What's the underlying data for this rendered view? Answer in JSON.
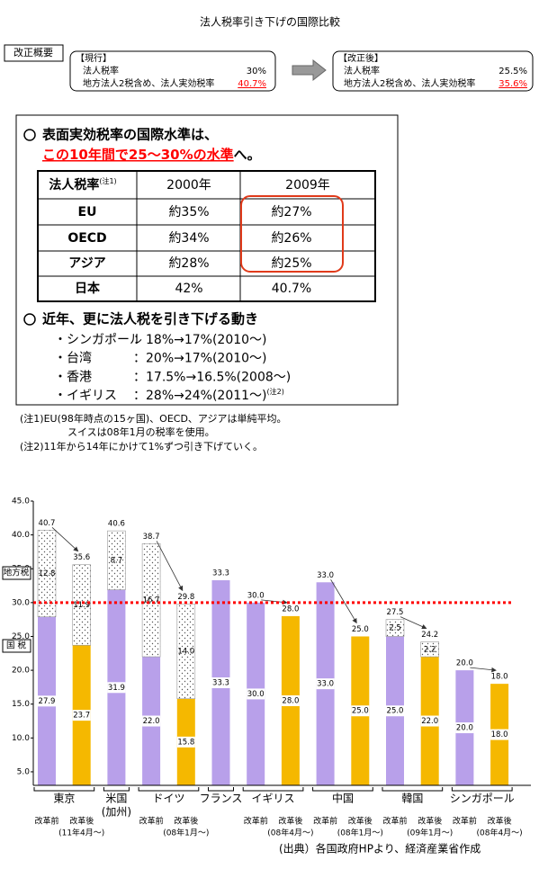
{
  "header": {
    "title": "法人税率引き下げの国際比較"
  },
  "summary": {
    "label": "改正概要",
    "current": {
      "heading": "【現行】",
      "rows": [
        {
          "label": "法人税率",
          "value": "30%"
        },
        {
          "label": "地方法人2税含め、法人実効税率",
          "value": "40.7%"
        }
      ]
    },
    "revised": {
      "heading": "【改正後】",
      "rows": [
        {
          "label": "法人税率",
          "value": "25.5%"
        },
        {
          "label": "地方法人2税含め、法人実効税率",
          "value": "35.6%"
        }
      ]
    }
  },
  "box": {
    "point1": {
      "lead": "表面実効税率の国際水準は、",
      "highlight": "この10年間で25～30%の水準",
      "tail": "へ。"
    },
    "table": {
      "header": [
        "法人税率",
        "2000年",
        "2009年"
      ],
      "header_note": "(注1)",
      "rows": [
        [
          "EU",
          "約35%",
          "約27%"
        ],
        [
          "OECD",
          "約34%",
          "約26%"
        ],
        [
          "アジア",
          "約28%",
          "約25%"
        ],
        [
          "日本",
          "42%",
          "40.7%"
        ]
      ]
    },
    "point2": "近年、更に法人税を引き下げる動き",
    "moves": [
      {
        "country": "・シンガポール",
        "change": "：18%→17%(2010～)"
      },
      {
        "country": "・台湾",
        "change": "：20%→17%(2010～)"
      },
      {
        "country": "・香港",
        "change": "：17.5%→16.5%(2008～)"
      },
      {
        "country": "・イギリス",
        "change": "：28%→24%(2011～)",
        "note": "(注2)"
      }
    ]
  },
  "notes": [
    "(注1)EU(98年時点の15ヶ国)、OECD、アジアは単純平均。",
    "スイスは08年1月の税率を使用。",
    "(注2)11年から14年にかけて1%ずつ引き下げていく。"
  ],
  "chart_data": {
    "type": "bar",
    "groups": [
      {
        "name": "東京",
        "categories": [
          "改革前",
          "改革後"
        ],
        "note": "(11年4月～)"
      },
      {
        "name": "米国",
        "name2": "(加州)",
        "categories": [
          null
        ]
      },
      {
        "name": "ドイツ",
        "categories": [
          "改革前",
          "改革後"
        ],
        "note": "(08年1月～)"
      },
      {
        "name": "フランス",
        "categories": [
          null
        ]
      },
      {
        "name": "イギリス",
        "categories": [
          "改革前",
          "改革後"
        ],
        "note": "(08年4月～)"
      },
      {
        "name": "中国",
        "categories": [
          "改革前",
          "改革後"
        ],
        "note": "(08年1月～)"
      },
      {
        "name": "韓国",
        "categories": [
          "改革前",
          "改革後"
        ],
        "note": "(09年1月～)"
      },
      {
        "name": "シンガポール",
        "categories": [
          "改革前",
          "改革後"
        ],
        "note": "(08年4月～)"
      }
    ],
    "series": [
      {
        "name": "国 税",
        "colors": [
          "#b8a0ea",
          "#f5b800",
          "#b8a0ea",
          "#b8a0ea",
          "#f5b800",
          "#b8a0ea",
          "#b8a0ea",
          "#f5b800",
          "#b8a0ea",
          "#f5b800",
          "#b8a0ea",
          "#f5b800",
          "#b8a0ea",
          "#f5b800"
        ],
        "values": [
          27.9,
          23.7,
          31.9,
          22.0,
          15.8,
          33.3,
          30.0,
          28.0,
          33.0,
          25.0,
          25.0,
          22.0,
          20.0,
          18.0
        ],
        "value_labels": [
          "27.9",
          "23.7",
          "31.9",
          "22.0",
          "15.8",
          "33.3",
          "30.0",
          "28.0",
          "33.0",
          "25.0",
          "25.0",
          "22.0",
          "20.0",
          "18.0"
        ]
      },
      {
        "name": "地方税",
        "color": "#ffffff",
        "hatch": "dots",
        "values": [
          12.8,
          11.9,
          8.7,
          16.7,
          14.0,
          null,
          null,
          null,
          null,
          null,
          2.5,
          2.2,
          null,
          null
        ],
        "value_labels": [
          "12.8",
          "11.9",
          "8.7",
          "16.7",
          "14.0",
          null,
          null,
          null,
          null,
          null,
          "2.5",
          "2.2",
          null,
          null
        ]
      }
    ],
    "totals": [
      40.7,
      35.6,
      40.6,
      38.7,
      29.8,
      33.3,
      30.0,
      28.0,
      33.0,
      25.0,
      27.5,
      24.2,
      20.0,
      18.0
    ],
    "total_labels": [
      "40.7",
      "35.6",
      "40.6",
      "38.7",
      "29.8",
      "33.3",
      "30.0",
      "28.0",
      "33.0",
      "25.0",
      "27.5",
      "24.2",
      "20.0",
      "18.0"
    ],
    "ylim": [
      3,
      45
    ],
    "yticks": [
      {
        "value": 5,
        "label": "5.0"
      },
      {
        "value": 10,
        "label": "10.0"
      },
      {
        "value": 15,
        "label": "15.0"
      },
      {
        "value": 20,
        "label": "20.0"
      },
      {
        "value": 25,
        "label": "25.0"
      },
      {
        "value": 30,
        "label": "30.0"
      },
      {
        "value": 35,
        "label": "35.0"
      },
      {
        "value": 40,
        "label": "40.0"
      },
      {
        "value": 45,
        "label": "45.0"
      }
    ],
    "grid": false,
    "reference_line": {
      "value": 30,
      "color": "#ff0000"
    }
  },
  "source": "(出典）各国政府HPより、経済産業省作成"
}
